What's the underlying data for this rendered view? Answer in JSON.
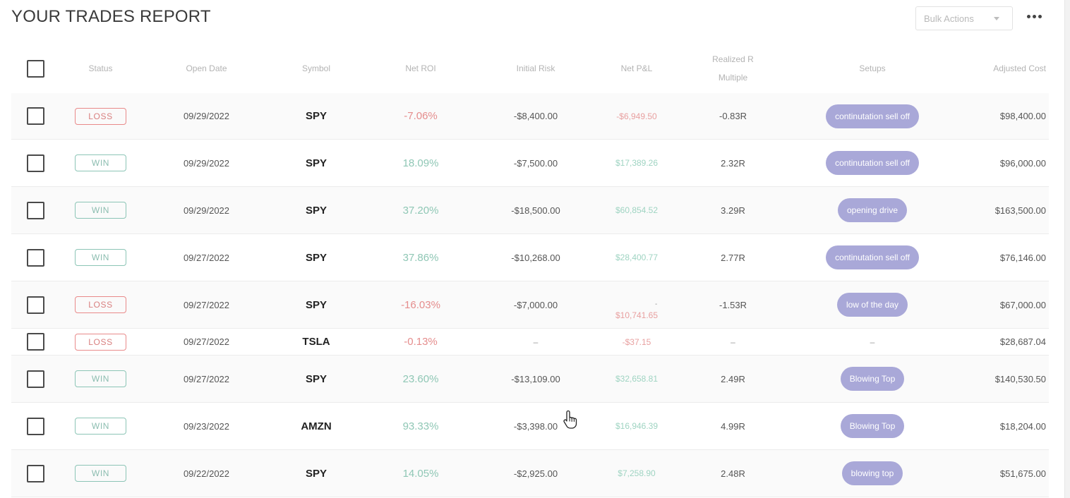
{
  "header": {
    "title": "YOUR TRADES REPORT",
    "bulk_actions": "Bulk Actions",
    "more_icon": "more-horizontal-icon"
  },
  "columns": [
    "Status",
    "Open Date",
    "Symbol",
    "Net ROI",
    "Initial Risk",
    "Net P&L",
    "Realized R Multiple",
    "Setups",
    "Adjusted Cost"
  ],
  "colors": {
    "loss": "#e58d8d",
    "win": "#8fc7b5",
    "setup_pill": "#a9a8d8"
  },
  "trades": [
    {
      "status": "LOSS",
      "open_date": "09/29/2022",
      "symbol": "SPY",
      "net_roi": "-7.06%",
      "initial_risk": "-$8,400.00",
      "net_pnl": "-$6,949.50",
      "r_multiple": "-0.83R",
      "setup": "continutation sell off",
      "adjusted_cost": "$98,400.00"
    },
    {
      "status": "WIN",
      "open_date": "09/29/2022",
      "symbol": "SPY",
      "net_roi": "18.09%",
      "initial_risk": "-$7,500.00",
      "net_pnl": "$17,389.26",
      "r_multiple": "2.32R",
      "setup": "continutation sell off",
      "adjusted_cost": "$96,000.00"
    },
    {
      "status": "WIN",
      "open_date": "09/29/2022",
      "symbol": "SPY",
      "net_roi": "37.20%",
      "initial_risk": "-$18,500.00",
      "net_pnl": "$60,854.52",
      "r_multiple": "3.29R",
      "setup": "opening drive",
      "adjusted_cost": "$163,500.00"
    },
    {
      "status": "WIN",
      "open_date": "09/27/2022",
      "symbol": "SPY",
      "net_roi": "37.86%",
      "initial_risk": "-$10,268.00",
      "net_pnl": "$28,400.77",
      "r_multiple": "2.77R",
      "setup": "continutation sell off",
      "adjusted_cost": "$76,146.00"
    },
    {
      "status": "LOSS",
      "open_date": "09/27/2022",
      "symbol": "SPY",
      "net_roi": "-16.03%",
      "initial_risk": "-$7,000.00",
      "net_pnl_sign": "-",
      "net_pnl": "$10,741.65",
      "r_multiple": "-1.53R",
      "setup": "low of the day",
      "adjusted_cost": "$67,000.00"
    },
    {
      "status": "LOSS",
      "open_date": "09/27/2022",
      "symbol": "TSLA",
      "net_roi": "-0.13%",
      "initial_risk": "–",
      "net_pnl": "-$37.15",
      "r_multiple": "–",
      "setup": "–",
      "adjusted_cost": "$28,687.04"
    },
    {
      "status": "WIN",
      "open_date": "09/27/2022",
      "symbol": "SPY",
      "net_roi": "23.60%",
      "initial_risk": "-$13,109.00",
      "net_pnl": "$32,658.81",
      "r_multiple": "2.49R",
      "setup": "Blowing Top",
      "adjusted_cost": "$140,530.50"
    },
    {
      "status": "WIN",
      "open_date": "09/23/2022",
      "symbol": "AMZN",
      "net_roi": "93.33%",
      "initial_risk": "-$3,398.00",
      "net_pnl": "$16,946.39",
      "r_multiple": "4.99R",
      "setup": "Blowing Top",
      "adjusted_cost": "$18,204.00"
    },
    {
      "status": "WIN",
      "open_date": "09/22/2022",
      "symbol": "SPY",
      "net_roi": "14.05%",
      "initial_risk": "-$2,925.00",
      "net_pnl": "$7,258.90",
      "r_multiple": "2.48R",
      "setup": "blowing top",
      "adjusted_cost": "$51,675.00"
    }
  ],
  "cursor_icon": "hand-pointer-icon"
}
